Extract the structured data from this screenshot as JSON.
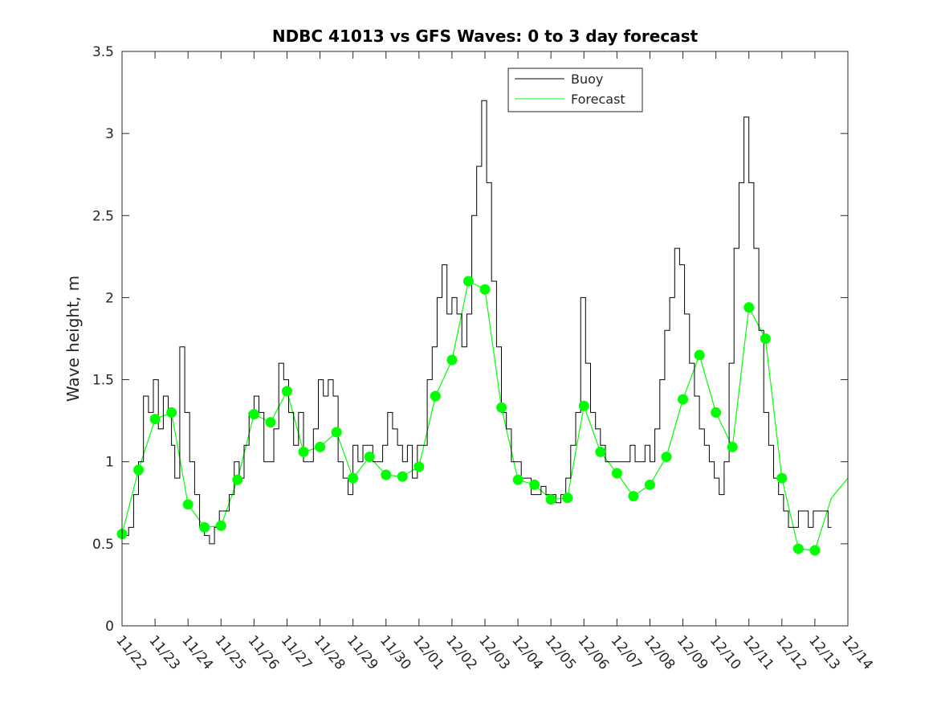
{
  "chart_data": {
    "type": "line",
    "title": "NDBC 41013 vs GFS Waves: 0 to 3 day forecast",
    "xlabel": "",
    "ylabel": "Wave height, m",
    "ylim": [
      0,
      3.5
    ],
    "yticks": [
      0,
      0.5,
      1,
      1.5,
      2,
      2.5,
      3,
      3.5
    ],
    "ytick_labels": [
      "0",
      "0.5",
      "1",
      "1.5",
      "2",
      "2.5",
      "3",
      "3.5"
    ],
    "xlim_days": [
      0,
      22
    ],
    "x_tick_labels": [
      "11/22",
      "11/23",
      "11/24",
      "11/25",
      "11/26",
      "11/27",
      "11/28",
      "11/29",
      "11/30",
      "12/01",
      "12/02",
      "12/03",
      "12/04",
      "12/05",
      "12/06",
      "12/07",
      "12/08",
      "12/09",
      "12/10",
      "12/11",
      "12/12",
      "12/13",
      "12/14"
    ],
    "legend": {
      "position": "top-center",
      "entries": [
        "Buoy",
        "Forecast"
      ]
    },
    "colors": {
      "buoy": "#000000",
      "forecast": "#00ff00",
      "axis": "#262626"
    },
    "series": [
      {
        "name": "Buoy",
        "x": [
          0,
          0.2,
          0.35,
          0.5,
          0.65,
          0.8,
          0.95,
          1.1,
          1.25,
          1.4,
          1.5,
          1.6,
          1.75,
          1.9,
          2.05,
          2.2,
          2.35,
          2.5,
          2.65,
          2.8,
          2.95,
          3.1,
          3.25,
          3.4,
          3.55,
          3.7,
          3.85,
          4.0,
          4.15,
          4.3,
          4.45,
          4.6,
          4.75,
          4.9,
          5.05,
          5.2,
          5.35,
          5.5,
          5.65,
          5.8,
          5.95,
          6.1,
          6.25,
          6.4,
          6.55,
          6.7,
          6.85,
          7.0,
          7.15,
          7.3,
          7.45,
          7.6,
          7.75,
          7.9,
          8.05,
          8.2,
          8.35,
          8.5,
          8.65,
          8.8,
          8.95,
          9.1,
          9.25,
          9.4,
          9.55,
          9.7,
          9.85,
          10.0,
          10.15,
          10.3,
          10.45,
          10.6,
          10.75,
          10.9,
          11.05,
          11.2,
          11.35,
          11.5,
          11.65,
          11.8,
          11.95,
          12.1,
          12.25,
          12.4,
          12.55,
          12.7,
          12.85,
          13.0,
          13.15,
          13.3,
          13.45,
          13.6,
          13.75,
          13.9,
          14.05,
          14.2,
          14.35,
          14.5,
          14.65,
          14.8,
          14.95,
          15.1,
          15.25,
          15.4,
          15.55,
          15.7,
          15.85,
          16.0,
          16.15,
          16.3,
          16.45,
          16.6,
          16.75,
          16.9,
          17.05,
          17.2,
          17.35,
          17.5,
          17.65,
          17.8,
          17.95,
          18.1,
          18.25,
          18.4,
          18.55,
          18.7,
          18.85,
          19.0,
          19.15,
          19.3,
          19.45,
          19.6,
          19.75,
          19.9,
          20.05,
          20.2,
          20.35,
          20.5,
          20.65,
          20.8,
          20.95,
          21.1,
          21.25,
          21.4,
          21.5
        ],
        "values": [
          0.55,
          0.6,
          0.8,
          1.0,
          1.4,
          1.3,
          1.5,
          1.2,
          1.4,
          1.3,
          1.1,
          0.9,
          1.7,
          1.3,
          1.0,
          0.8,
          0.6,
          0.55,
          0.5,
          0.6,
          0.7,
          0.7,
          0.8,
          1.0,
          0.9,
          1.1,
          1.3,
          1.4,
          1.3,
          1.0,
          1.0,
          1.2,
          1.6,
          1.5,
          1.3,
          1.1,
          1.3,
          1.0,
          1.0,
          1.2,
          1.5,
          1.4,
          1.5,
          1.4,
          1.0,
          0.9,
          0.8,
          1.1,
          1.0,
          1.1,
          1.1,
          1.0,
          1.0,
          1.1,
          1.3,
          1.2,
          1.1,
          1.0,
          1.1,
          0.9,
          1.1,
          1.1,
          1.5,
          1.7,
          2.0,
          2.2,
          1.9,
          2.0,
          1.9,
          1.7,
          1.9,
          2.5,
          2.8,
          3.2,
          2.7,
          2.1,
          1.7,
          1.3,
          1.2,
          1.0,
          1.0,
          0.9,
          0.9,
          0.8,
          0.8,
          0.85,
          0.8,
          0.8,
          0.75,
          0.8,
          0.9,
          1.1,
          1.3,
          2.0,
          1.6,
          1.3,
          1.2,
          1.1,
          1.0,
          1.0,
          1.0,
          1.0,
          1.0,
          1.1,
          1.0,
          1.0,
          1.1,
          1.0,
          1.2,
          1.5,
          1.8,
          2.0,
          2.3,
          2.2,
          1.9,
          1.6,
          1.4,
          1.2,
          1.1,
          1.0,
          0.9,
          0.8,
          1.0,
          1.6,
          2.3,
          2.7,
          3.1,
          2.7,
          2.3,
          1.8,
          1.3,
          1.1,
          0.9,
          0.8,
          0.7,
          0.6,
          0.6,
          0.7,
          0.7,
          0.6,
          0.7,
          0.7,
          0.7,
          0.6,
          0.6
        ]
      },
      {
        "name": "Forecast",
        "x": [
          0,
          0.5,
          1.0,
          1.5,
          2.0,
          2.5,
          3.0,
          3.5,
          4.0,
          4.5,
          5.0,
          5.5,
          6.0,
          6.5,
          7.0,
          7.5,
          8.0,
          8.5,
          9.0,
          9.5,
          10.0,
          10.5,
          11.0,
          11.5,
          12.0,
          12.5,
          13.0,
          13.5,
          14.0,
          14.5,
          15.0,
          15.5,
          16.0,
          16.5,
          17.0,
          17.5,
          18.0,
          18.5,
          19.0,
          19.5,
          20.0,
          20.5,
          21.0,
          21.5,
          22.0
        ],
        "values": [
          0.56,
          0.95,
          1.26,
          1.3,
          0.74,
          0.6,
          0.61,
          0.89,
          1.29,
          1.24,
          1.43,
          1.06,
          1.09,
          1.18,
          0.9,
          1.03,
          0.92,
          0.91,
          0.97,
          1.4,
          1.62,
          2.1,
          2.05,
          1.33,
          0.89,
          0.86,
          0.77,
          0.78,
          1.34,
          1.06,
          0.93,
          0.79,
          0.86,
          1.03,
          1.38,
          1.65,
          1.3,
          1.09,
          1.94,
          1.75,
          0.9,
          0.47,
          0.46,
          0.78,
          0.9
        ]
      }
    ]
  }
}
